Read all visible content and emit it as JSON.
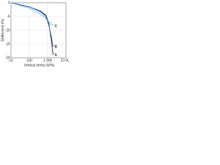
{
  "chart_data": {
    "type": "line",
    "x_label": "Vertical stress (kPa)",
    "y_label": "Settlement (%)",
    "x": [
      10,
      100,
      400,
      800,
      1200,
      1600,
      2000
    ],
    "series": [
      {
        "name": "A",
        "color": "#111111",
        "values": [
          0,
          -1.5,
          -3,
          -4.5,
          -8,
          -14,
          -19
        ]
      },
      {
        "name": "B",
        "color": "#1f5fbf",
        "values": [
          0,
          -1.5,
          -3.2,
          -5,
          -8.5,
          -12.5,
          -16
        ]
      },
      {
        "name": "C",
        "color": "#55b8e8",
        "values": [
          0,
          -2,
          -4,
          -5.8,
          -7,
          -7.8,
          -8.5
        ]
      }
    ],
    "xlim": [
      10,
      10000
    ],
    "xticks": [
      10,
      100,
      {
        "value": 1000,
        "label": "1 000"
      },
      {
        "value": 10000,
        "label": "10 000"
      }
    ],
    "ylim": [
      -20,
      0
    ],
    "yticks": [
      0,
      -5,
      -10,
      -15,
      -20
    ],
    "xlog": true,
    "grid": true
  }
}
